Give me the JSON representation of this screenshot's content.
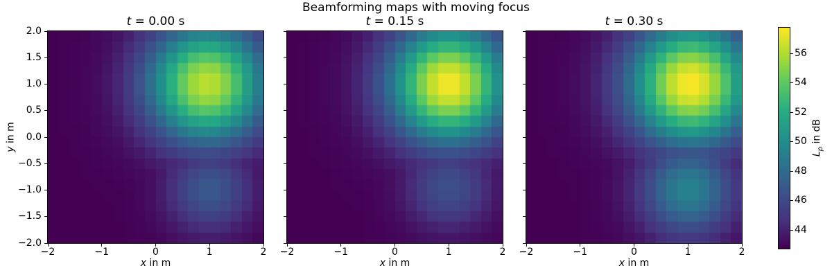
{
  "figure": {
    "suptitle": "Beamforming maps with moving focus",
    "colors": {
      "background": "#ffffff",
      "text": "#000000",
      "spine": "#000000"
    }
  },
  "chart_data": {
    "type": "heatmap",
    "title": "Beamforming maps with moving focus",
    "colormap": "viridis",
    "viridis_stops": [
      "#440154",
      "#46327f",
      "#3b528b",
      "#2c728e",
      "#21918c",
      "#27ad81",
      "#5cc863",
      "#aadc32",
      "#fde725"
    ],
    "grid": {
      "xmin": -2,
      "xmax": 2,
      "ymin": -2,
      "ymax": 2,
      "nx": 20,
      "ny": 20,
      "cell_m": 0.2
    },
    "vmin": 42.75,
    "vmax": 57.75,
    "xlabel_var": "x",
    "xlabel_rest": " in m",
    "ylabel_var": "y",
    "ylabel_rest": " in m",
    "colorbar_label_var": "L",
    "colorbar_label_sub": "p",
    "colorbar_label_rest": " in dB",
    "x_ticks": [
      {
        "value": -2,
        "label": "−2"
      },
      {
        "value": -1,
        "label": "−1"
      },
      {
        "value": 0,
        "label": "0"
      },
      {
        "value": 1,
        "label": "1"
      },
      {
        "value": 2,
        "label": "2"
      }
    ],
    "y_ticks": [
      {
        "value": 2.0,
        "label": "2.0"
      },
      {
        "value": 1.5,
        "label": "1.5"
      },
      {
        "value": 1.0,
        "label": "1.0"
      },
      {
        "value": 0.5,
        "label": "0.5"
      },
      {
        "value": 0.0,
        "label": "0.0"
      },
      {
        "value": -0.5,
        "label": "−0.5"
      },
      {
        "value": -1.0,
        "label": "−1.0"
      },
      {
        "value": -1.5,
        "label": "−1.5"
      },
      {
        "value": -2.0,
        "label": "−2.0"
      }
    ],
    "colorbar_ticks": [
      {
        "value": 44,
        "label": "44"
      },
      {
        "value": 46,
        "label": "46"
      },
      {
        "value": 48,
        "label": "48"
      },
      {
        "value": 50,
        "label": "50"
      },
      {
        "value": 52,
        "label": "52"
      },
      {
        "value": 54,
        "label": "54"
      },
      {
        "value": 56,
        "label": "56"
      }
    ],
    "panels": [
      {
        "title_var": "t",
        "title_rest": " = 0.00 s",
        "time_s": 0.0,
        "sources": [
          {
            "x": 0.95,
            "y": 1.0,
            "peak_db": 56.3,
            "sigma_m": 0.78
          },
          {
            "x": 1.0,
            "y": -1.0,
            "peak_db": 46.9,
            "sigma_m": 0.55
          }
        ]
      },
      {
        "title_var": "t",
        "title_rest": " = 0.15 s",
        "time_s": 0.15,
        "sources": [
          {
            "x": 1.0,
            "y": 1.0,
            "peak_db": 57.6,
            "sigma_m": 0.78
          },
          {
            "x": 1.0,
            "y": -0.95,
            "peak_db": 46.4,
            "sigma_m": 0.55
          }
        ]
      },
      {
        "title_var": "t",
        "title_rest": " = 0.30 s",
        "time_s": 0.3,
        "sources": [
          {
            "x": 1.05,
            "y": 1.0,
            "peak_db": 57.75,
            "sigma_m": 0.8
          },
          {
            "x": 1.0,
            "y": -1.0,
            "peak_db": 49.4,
            "sigma_m": 0.62
          }
        ]
      }
    ]
  }
}
